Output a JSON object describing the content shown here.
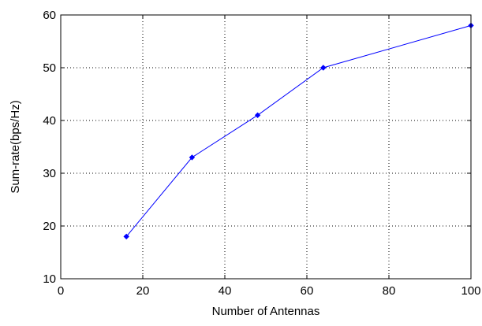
{
  "chart_data": {
    "type": "line",
    "title": "",
    "xlabel": "Number of Antennas",
    "ylabel": "Sum-rate(bps/Hz)",
    "xlim": [
      0,
      100
    ],
    "ylim": [
      10,
      60
    ],
    "xticks": [
      0,
      20,
      40,
      60,
      80,
      100
    ],
    "yticks": [
      10,
      20,
      30,
      40,
      50,
      60
    ],
    "grid": true,
    "grid_style": "dotted",
    "legend": "none",
    "series": [
      {
        "color": "#0000ff",
        "marker": "diamond",
        "x": [
          16,
          32,
          48,
          64,
          100
        ],
        "y": [
          18,
          33,
          41,
          50,
          58
        ]
      }
    ]
  }
}
